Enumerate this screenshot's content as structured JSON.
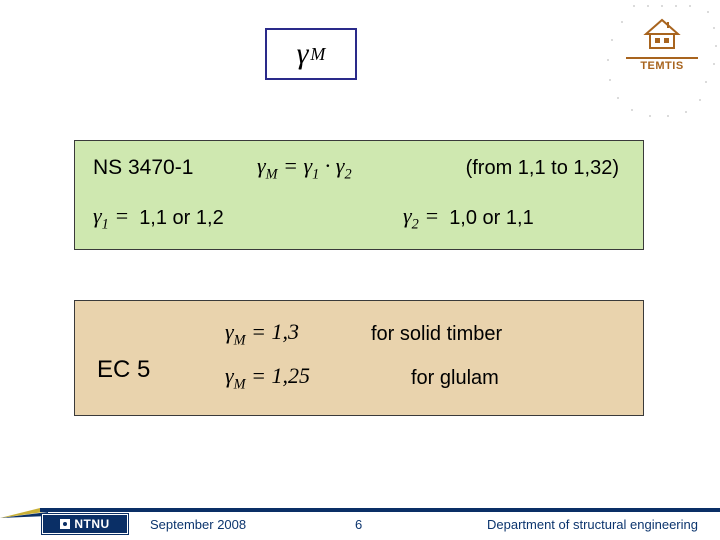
{
  "logo": {
    "brand": "TEMTIS"
  },
  "gamma_box": {
    "symbol": "γ",
    "subscript": "M"
  },
  "green_box": {
    "ns_label": "NS 3470-1",
    "eq_main_html": "γ<sub>M</sub> = γ<sub>1</sub> · γ<sub>2</sub>",
    "from_range": "(from 1,1 to 1,32)",
    "g1_eq_html": "γ<sub>1</sub> =",
    "g1_val": "1,1  or  1,2",
    "g2_eq_html": "γ<sub>2</sub> =",
    "g2_val": "1,0  or  1,1",
    "bg": "#cfe8b0"
  },
  "tan_box": {
    "ec5_label": "EC 5",
    "line1_eq_html": "γ<sub>M</sub> = 1,3",
    "line1_text": "for solid timber",
    "line2_eq_html": "γ<sub>M</sub> = 1,25",
    "line2_text": "for glulam",
    "bg": "#e9d3ad"
  },
  "footer": {
    "ntnu": "NTNU",
    "date": "September 2008",
    "page": "6",
    "dept": "Department of structural engineering",
    "bar_color": "#0a2f66"
  }
}
